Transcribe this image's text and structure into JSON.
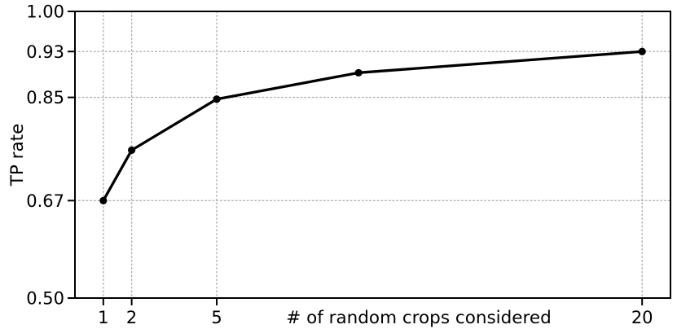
{
  "chart_data": {
    "type": "line",
    "xlabel": "# of random crops considered",
    "ylabel": "TP rate",
    "x": [
      1,
      2,
      5,
      10,
      20
    ],
    "y": [
      0.67,
      0.758,
      0.847,
      0.893,
      0.93
    ],
    "xlim": [
      0,
      21
    ],
    "ylim": [
      0.5,
      1.0
    ],
    "xticks": [
      1,
      2,
      5,
      20
    ],
    "xtick_labels": [
      "1",
      "2",
      "5",
      "20"
    ],
    "yticks": [
      0.5,
      0.67,
      0.85,
      0.93,
      1.0
    ],
    "ytick_labels": [
      "0.50",
      "0.67",
      "0.85",
      "0.93",
      "1.00"
    ],
    "grid": "dotted",
    "legend_position": "none",
    "marker": "circle",
    "colors": {
      "line": "#000000",
      "marker": "#000000",
      "grid": "#b0b0b0",
      "axis": "#000000",
      "text": "#000000",
      "background": "#ffffff"
    }
  }
}
